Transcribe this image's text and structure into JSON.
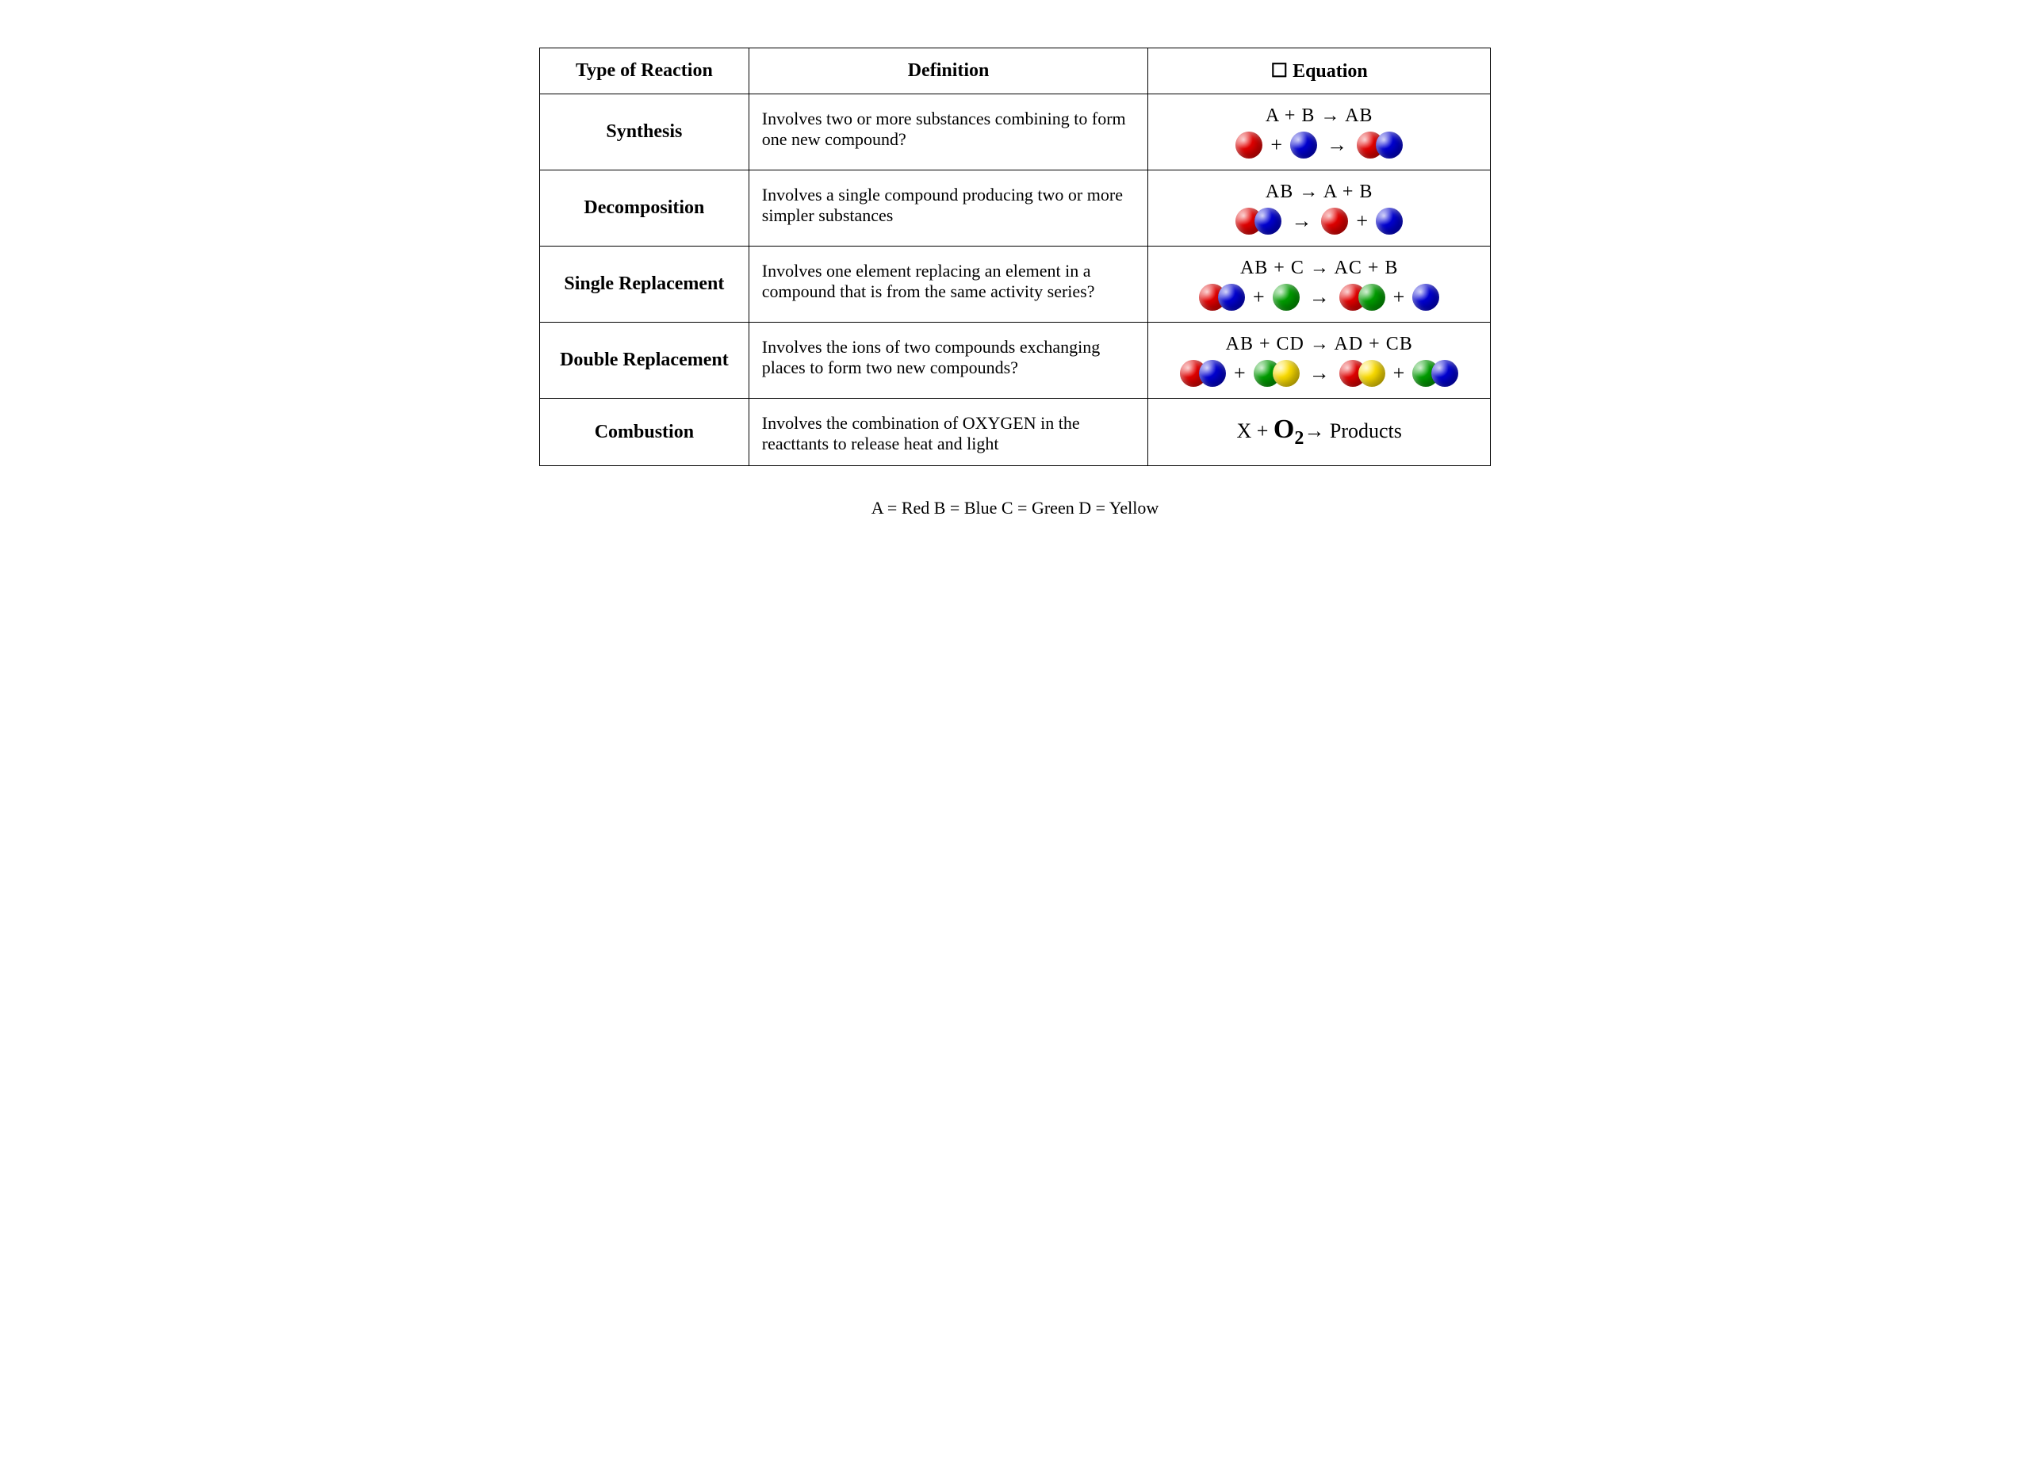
{
  "colors": {
    "A": "#e60000",
    "B": "#0000d6",
    "C": "#00a000",
    "D": "#ffe000",
    "border": "#000000",
    "background": "#ffffff",
    "text": "#000000"
  },
  "headers": {
    "type": "Type of Reaction",
    "definition": "Definition",
    "equation_prefix": "☐",
    "equation": "Equation"
  },
  "rows": [
    {
      "type": "Synthesis",
      "definition": "Involves two or more substances combining to form one new compound?",
      "equation_text": "A  +  B  →  AB",
      "diagram": [
        {
          "kind": "ball",
          "color": "A"
        },
        {
          "kind": "op",
          "text": "+"
        },
        {
          "kind": "ball",
          "color": "B"
        },
        {
          "kind": "arrow",
          "text": "→"
        },
        {
          "kind": "pair",
          "colors": [
            "A",
            "B"
          ]
        }
      ]
    },
    {
      "type": "Decomposition",
      "definition": "Involves a single compound producing two or more simpler substances",
      "equation_text": "AB →  A  +  B",
      "diagram": [
        {
          "kind": "pair",
          "colors": [
            "A",
            "B"
          ]
        },
        {
          "kind": "arrow",
          "text": "→"
        },
        {
          "kind": "ball",
          "color": "A"
        },
        {
          "kind": "op",
          "text": "+"
        },
        {
          "kind": "ball",
          "color": "B"
        }
      ]
    },
    {
      "type": "Single Replacement",
      "definition": "Involves one element replacing an element in a compound that is from the same activity series?",
      "equation_text": "AB +  C →  AC  +  B",
      "diagram": [
        {
          "kind": "pair",
          "colors": [
            "A",
            "B"
          ]
        },
        {
          "kind": "op",
          "text": "+"
        },
        {
          "kind": "ball",
          "color": "C"
        },
        {
          "kind": "arrow",
          "text": "→"
        },
        {
          "kind": "pair",
          "colors": [
            "A",
            "C"
          ]
        },
        {
          "kind": "op",
          "text": "+"
        },
        {
          "kind": "ball",
          "color": "B"
        }
      ]
    },
    {
      "type": "Double Replacement",
      "definition": "Involves the ions of two compounds exchanging places to form two new compounds?",
      "equation_text": "AB +  CD →  AD  +  CB",
      "diagram": [
        {
          "kind": "pair",
          "colors": [
            "A",
            "B"
          ]
        },
        {
          "kind": "op",
          "text": "+"
        },
        {
          "kind": "pair",
          "colors": [
            "C",
            "D"
          ]
        },
        {
          "kind": "arrow",
          "text": "→"
        },
        {
          "kind": "pair",
          "colors": [
            "A",
            "D"
          ]
        },
        {
          "kind": "op",
          "text": "+"
        },
        {
          "kind": "pair",
          "colors": [
            "C",
            "B"
          ]
        }
      ]
    },
    {
      "type": "Combustion",
      "definition": "Involves the combination of OXYGEN in the reacttants to  release heat and light",
      "combustion": {
        "x": "X + ",
        "o2": "O",
        "sub": "2",
        "arrow": "→ ",
        "products": "Products"
      }
    }
  ],
  "legend": "A = Red   B = Blue   C = Green   D = Yellow"
}
